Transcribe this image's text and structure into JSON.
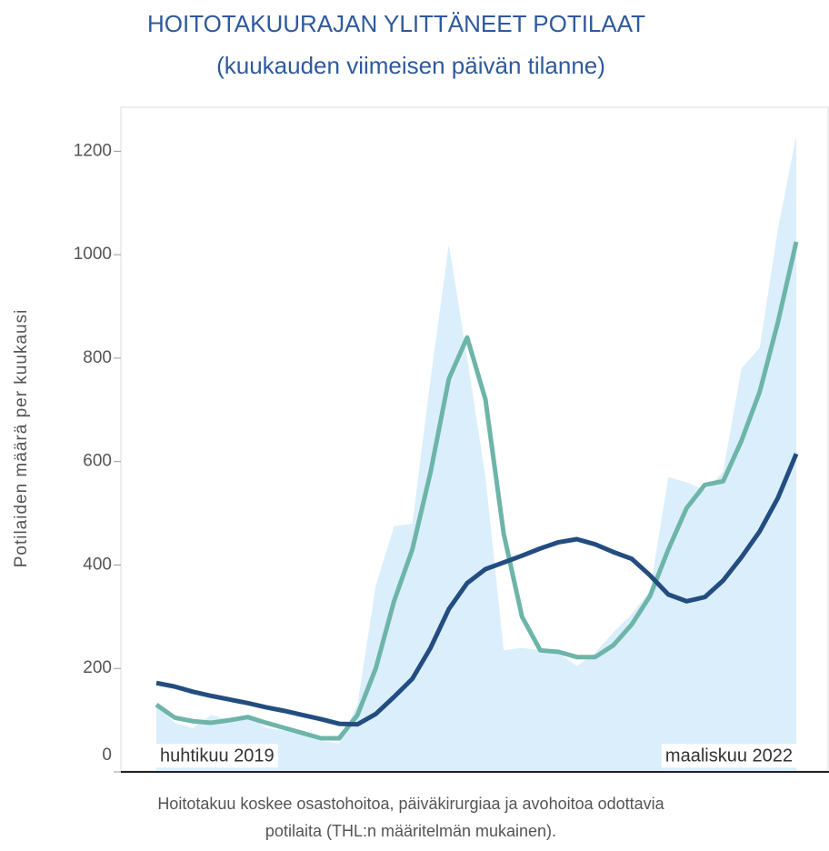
{
  "chart_data": {
    "type": "line",
    "title": "HOITOTAKUURAJAN YLITTÄNEET POTILAAT",
    "subtitle": "(kuukauden viimeisen päivän tilanne)",
    "y_label": "Potilaiden määrä per kuukausi",
    "footnote": [
      "Hoitotakuu koskee osastohoitoa, päiväkirurgiaa ja avohoitoa odottavia",
      "potilaita (THL:n määritelmän mukainen)."
    ],
    "categories": [
      "huhtikuu 2019",
      null,
      null,
      null,
      null,
      null,
      null,
      null,
      null,
      null,
      null,
      null,
      null,
      null,
      null,
      null,
      null,
      null,
      null,
      null,
      null,
      null,
      null,
      null,
      null,
      null,
      null,
      null,
      null,
      null,
      null,
      null,
      null,
      null,
      null,
      "maaliskuu 2022"
    ],
    "series": [
      {
        "kind": "area",
        "color": "#dbeefc",
        "values": [
          130,
          95,
          85,
          110,
          100,
          110,
          85,
          80,
          70,
          60,
          55,
          130,
          360,
          475,
          480,
          760,
          1020,
          800,
          570,
          235,
          240,
          235,
          230,
          205,
          230,
          270,
          305,
          350,
          570,
          560,
          545,
          580,
          780,
          820,
          1050,
          1230
        ]
      },
      {
        "kind": "line",
        "color": "#6db5a8",
        "values": [
          130,
          105,
          98,
          95,
          100,
          106,
          95,
          85,
          75,
          65,
          65,
          110,
          200,
          330,
          430,
          580,
          760,
          840,
          720,
          460,
          300,
          235,
          232,
          222,
          222,
          245,
          285,
          340,
          430,
          510,
          555,
          562,
          640,
          735,
          870,
          1025
        ]
      },
      {
        "kind": "line",
        "color": "#234d80",
        "values": [
          172,
          165,
          155,
          147,
          140,
          133,
          125,
          118,
          110,
          102,
          93,
          92,
          112,
          145,
          180,
          240,
          315,
          365,
          392,
          405,
          418,
          432,
          444,
          450,
          440,
          425,
          412,
          380,
          343,
          330,
          338,
          370,
          415,
          465,
          530,
          615
        ]
      }
    ],
    "ylim": [
      0,
      1285
    ],
    "yticks": [
      0,
      200,
      400,
      600,
      800,
      1000,
      1200
    ]
  }
}
